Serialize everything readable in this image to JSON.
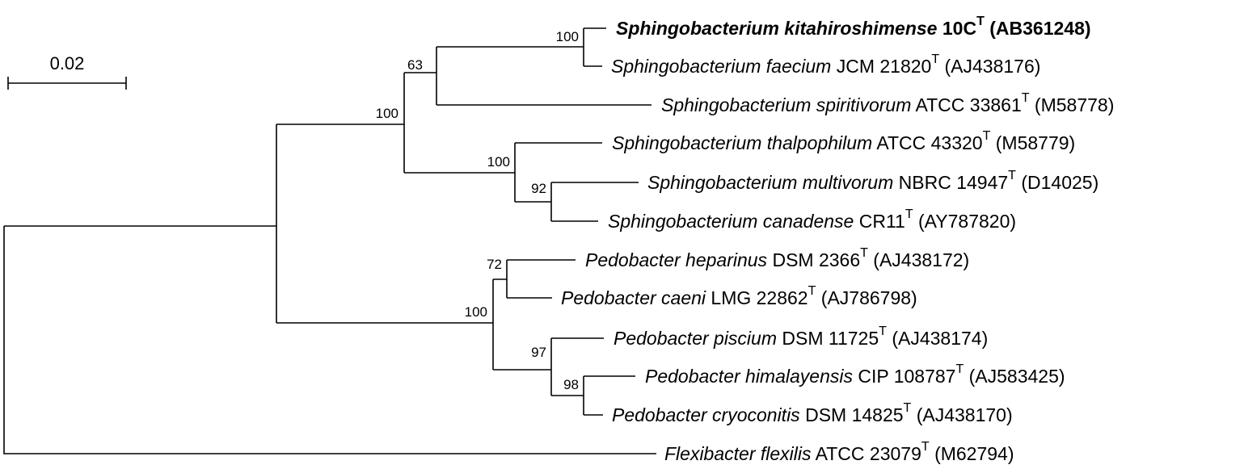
{
  "scale_bar": {
    "label": "0.02"
  },
  "tips": [
    {
      "genus_species": "Sphingobacterium kitahiroshimense",
      "strain": "10C",
      "sup": "T",
      "accession": "(AB361248)",
      "bold": true
    },
    {
      "genus_species": "Sphingobacterium faecium",
      "strain": "JCM 21820",
      "sup": "T",
      "accession": "(AJ438176)"
    },
    {
      "genus_species": "Sphingobacterium spiritivorum",
      "strain": "ATCC 33861",
      "sup": "T",
      "accession": "(M58778)"
    },
    {
      "genus_species": "Sphingobacterium thalpophilum",
      "strain": "ATCC 43320",
      "sup": "T",
      "accession": "(M58779)"
    },
    {
      "genus_species": "Sphingobacterium multivorum",
      "strain": "NBRC 14947",
      "sup": "T",
      "accession": "(D14025)"
    },
    {
      "genus_species": "Sphingobacterium canadense",
      "strain": "CR11",
      "sup": "T",
      "accession": "(AY787820)"
    },
    {
      "genus_species": "Pedobacter heparinus",
      "strain": "DSM 2366",
      "sup": "T",
      "accession": "(AJ438172)"
    },
    {
      "genus_species": "Pedobacter caeni",
      "strain": "LMG 22862",
      "sup": "T",
      "accession": "(AJ786798)"
    },
    {
      "genus_species": "Pedobacter piscium",
      "strain": "DSM 11725",
      "sup": "T",
      "accession": "(AJ438174)"
    },
    {
      "genus_species": "Pedobacter himalayensis",
      "strain": "CIP 108787",
      "sup": "T",
      "accession": "(AJ583425)"
    },
    {
      "genus_species": "Pedobacter cryoconitis",
      "strain": "DSM 14825",
      "sup": "T",
      "accession": "(AJ438170)"
    },
    {
      "genus_species": "Flexibacter flexilis",
      "strain": "ATCC 23079",
      "sup": "T",
      "accession": "(M62794)"
    }
  ],
  "bootstrap": [
    "100",
    "63",
    "100",
    "100",
    "92",
    "72",
    "100",
    "97",
    "98"
  ]
}
